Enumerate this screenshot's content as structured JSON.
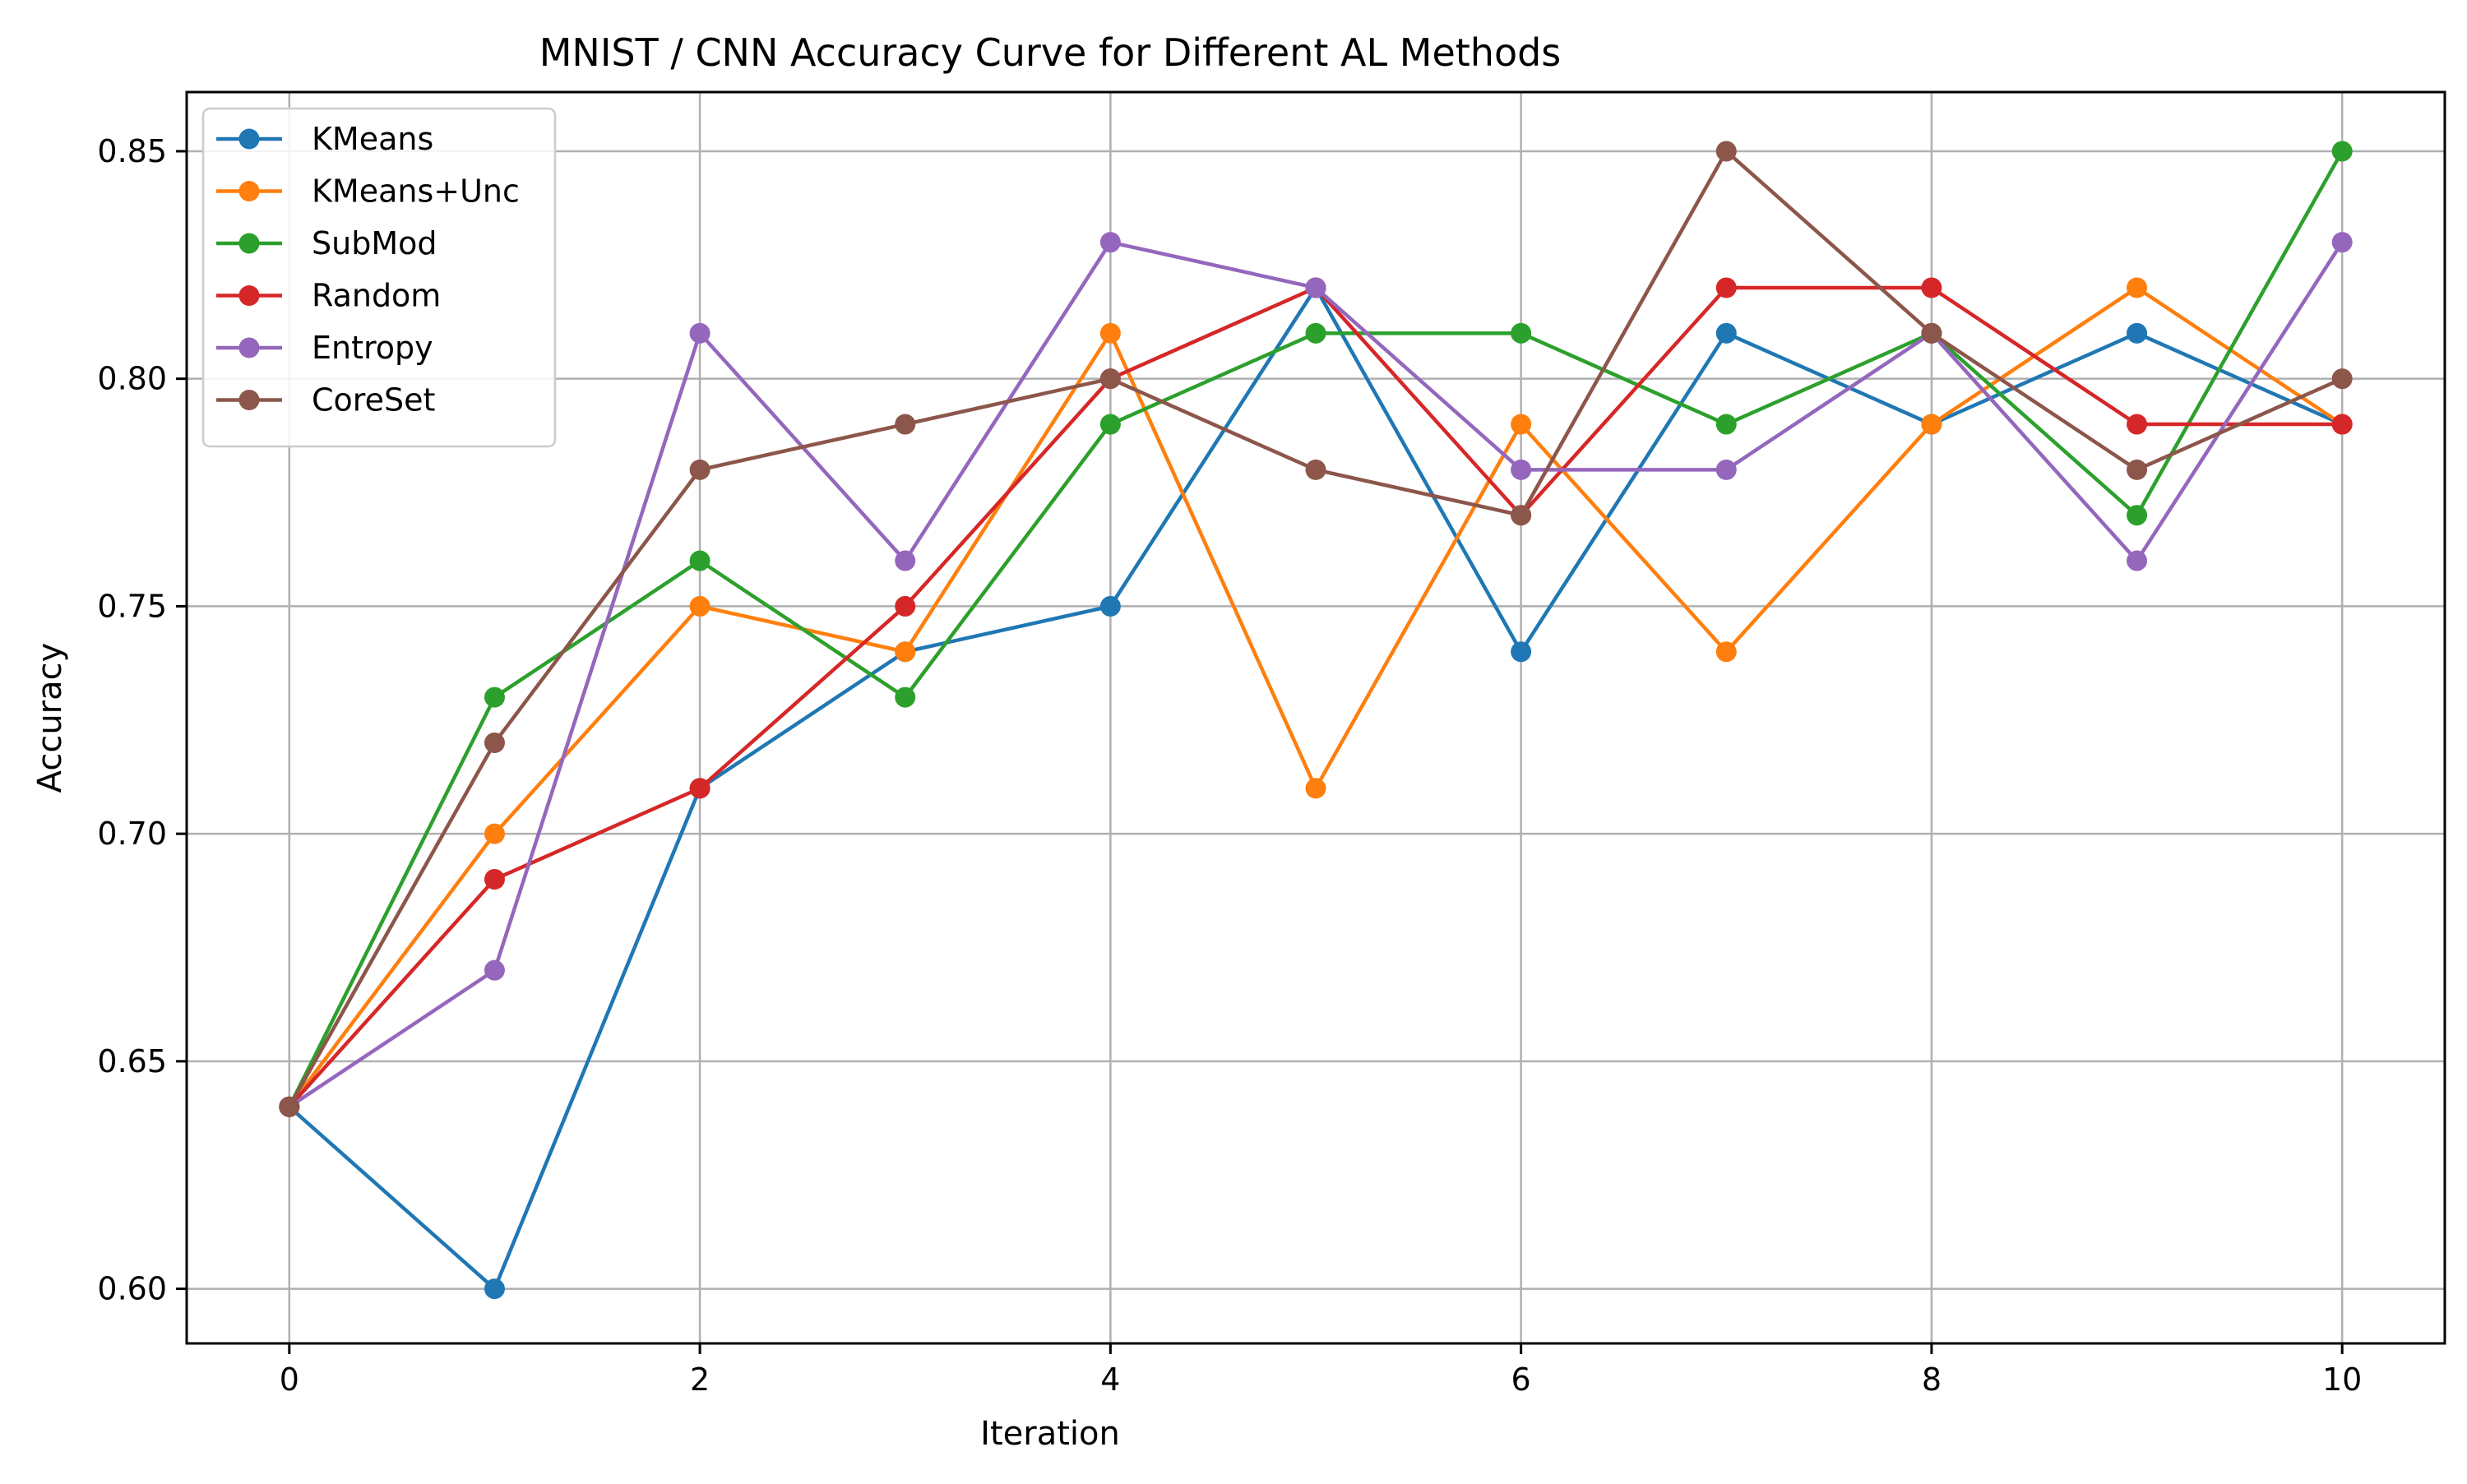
{
  "chart_data": {
    "type": "line",
    "title": "MNIST / CNN Accuracy Curve for Different AL Methods",
    "xlabel": "Iteration",
    "ylabel": "Accuracy",
    "xlim": [
      -0.5,
      10.5
    ],
    "ylim": [
      0.588,
      0.863
    ],
    "x_ticks": [
      0,
      2,
      4,
      6,
      8,
      10
    ],
    "x_tick_labels": [
      "0",
      "2",
      "4",
      "6",
      "8",
      "10"
    ],
    "y_ticks": [
      0.6,
      0.65,
      0.7,
      0.75,
      0.8,
      0.85
    ],
    "y_tick_labels": [
      "0.60",
      "0.65",
      "0.70",
      "0.75",
      "0.80",
      "0.85"
    ],
    "grid": true,
    "legend_position": "top-left",
    "x": [
      0,
      1,
      2,
      3,
      4,
      5,
      6,
      7,
      8,
      9,
      10
    ],
    "series": [
      {
        "name": "KMeans",
        "color": "#1f77b4",
        "values": [
          0.64,
          0.6,
          0.71,
          0.74,
          0.75,
          0.82,
          0.74,
          0.81,
          0.79,
          0.81,
          0.79
        ]
      },
      {
        "name": "KMeans+Unc",
        "color": "#ff7f0e",
        "values": [
          0.64,
          0.7,
          0.75,
          0.74,
          0.81,
          0.71,
          0.79,
          0.74,
          0.79,
          0.82,
          0.79
        ]
      },
      {
        "name": "SubMod",
        "color": "#2ca02c",
        "values": [
          0.64,
          0.73,
          0.76,
          0.73,
          0.79,
          0.81,
          0.81,
          0.79,
          0.81,
          0.77,
          0.85
        ]
      },
      {
        "name": "Random",
        "color": "#d62728",
        "values": [
          0.64,
          0.69,
          0.71,
          0.75,
          0.8,
          0.82,
          0.77,
          0.82,
          0.82,
          0.79,
          0.79
        ]
      },
      {
        "name": "Entropy",
        "color": "#9467bd",
        "values": [
          0.64,
          0.67,
          0.81,
          0.76,
          0.83,
          0.82,
          0.78,
          0.78,
          0.81,
          0.76,
          0.83
        ]
      },
      {
        "name": "CoreSet",
        "color": "#8c564b",
        "values": [
          0.64,
          0.72,
          0.78,
          0.79,
          0.8,
          0.78,
          0.77,
          0.85,
          0.81,
          0.78,
          0.8
        ]
      }
    ]
  }
}
